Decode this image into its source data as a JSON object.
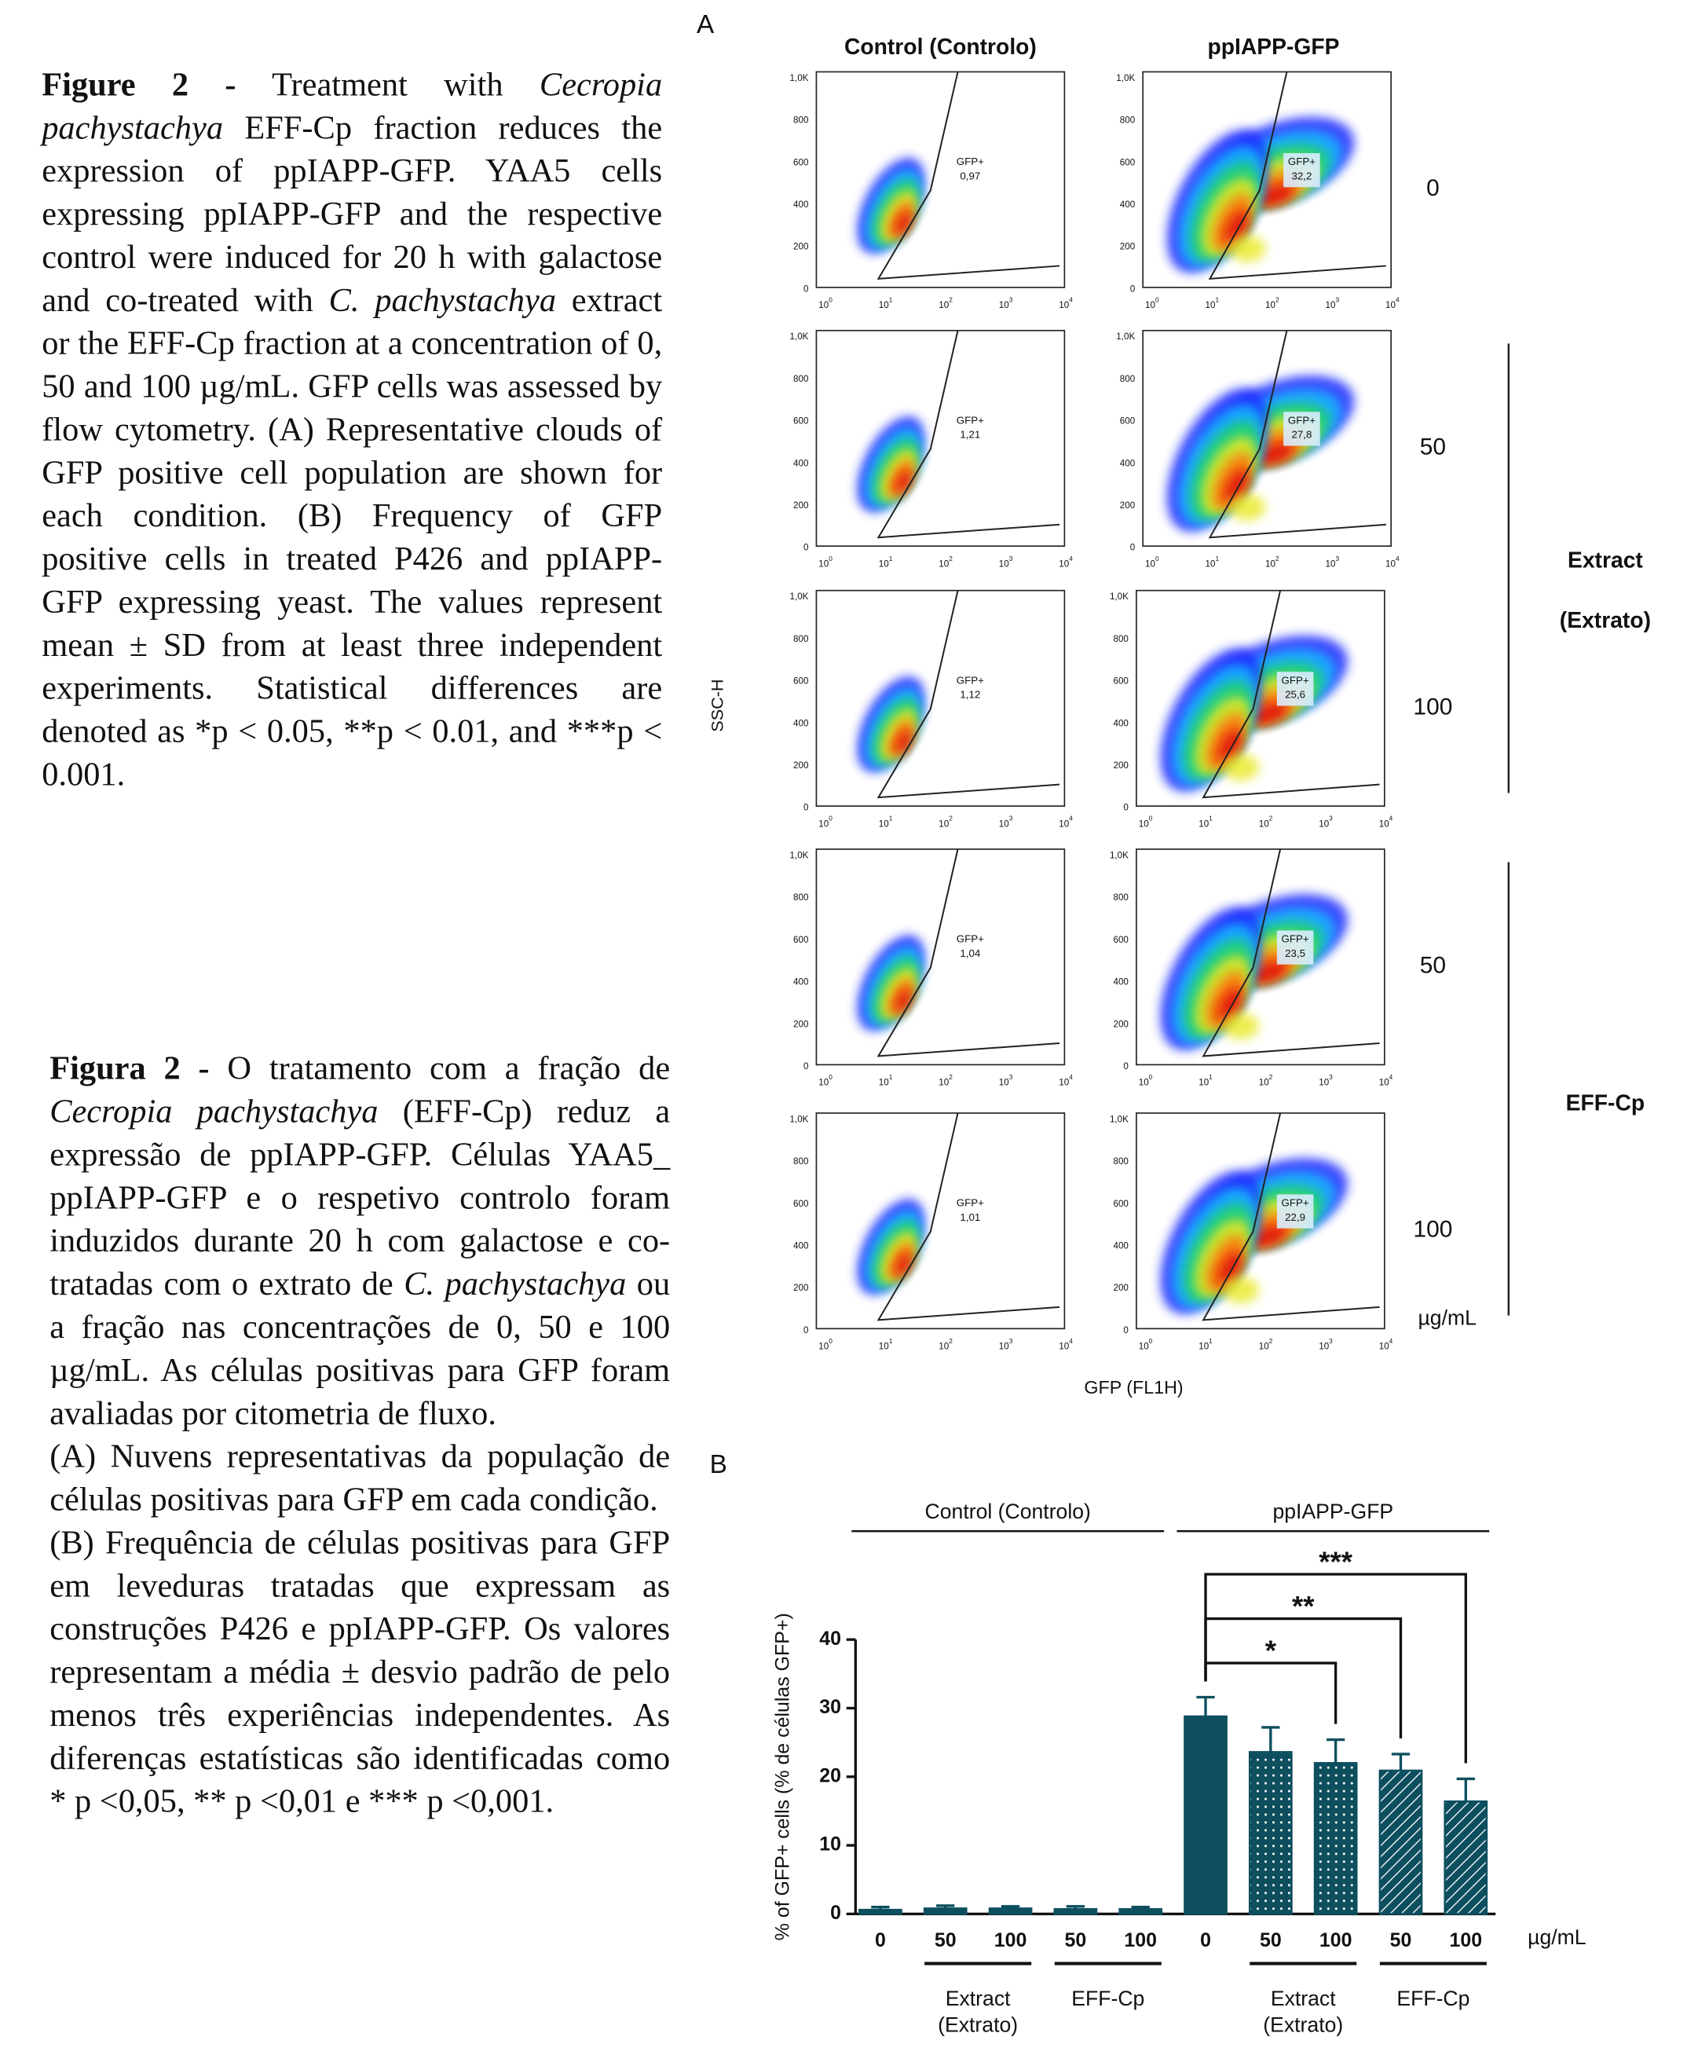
{
  "caption_en": {
    "paragraphs": [
      [
        {
          "text": "Figure 2 -",
          "style": "bold"
        },
        {
          "text": " Treatment with "
        },
        {
          "text": "Cecropia pachystachya",
          "style": "italic"
        },
        {
          "text": " EFF-Cp fraction reduces the expression of ppIAPP-GFP. YAA5 cells expressing ppIAPP-GFP and the respective control were induced for 20 h with galactose and co-treated with "
        },
        {
          "text": "C. pachystachya",
          "style": "italic"
        },
        {
          "text": " extract or the EFF-Cp fraction at a concentration of 0, 50 and 100 µg/mL. GFP cells was assessed by flow cytometry. (A) Representative clouds of GFP positive cell population are shown for each condition. (B) Frequency of GFP positive cells in treated P426 and ppIAPP-GFP expressing yeast. The values represent mean ± SD from at least three independent experiments. Statistical differences are denoted as *p < 0.05, **p < 0.01, and ***p < 0.001."
        }
      ]
    ]
  },
  "caption_pt": {
    "paragraphs": [
      [
        {
          "text": "Figura 2 -",
          "style": "bold"
        },
        {
          "text": " O tratamento com a fração de "
        },
        {
          "text": "Cecropia pachystachya",
          "style": "italic"
        },
        {
          "text": " (EFF-Cp) reduz a expressão de ppIAPP-GFP. Células YAA5_ ppIAPP-GFP e o respetivo controlo foram induzidos durante 20 h com galactose e co-tratadas com o extrato de "
        },
        {
          "text": "C. pachystachya",
          "style": "italic"
        },
        {
          "text": " ou a fração nas concentrações de 0, 50 e 100 µg/mL. As células positivas para GFP foram avaliadas por citometria de fluxo."
        }
      ],
      [
        {
          "text": "(A) Nuvens representativas da população de células positivas para GFP em cada condição."
        }
      ],
      [
        {
          "text": "(B) Frequência de células positivas para GFP em leveduras tratadas que expressam as construções P426 e ppIAPP-GFP. Os valores representam a média ± desvio padrão de pelo menos três experiências independentes. As diferenças estatísticas são identificadas como * p <0,05, ** p <0,01 e *** p <0,001."
        }
      ]
    ]
  },
  "panel_a": {
    "label": "A",
    "columns": [
      "Control (Controlo)",
      "ppIAPP-GFP"
    ],
    "doses": [
      "0",
      "50",
      "100",
      "50",
      "100"
    ],
    "dose_unit": "µg/mL",
    "groups": [
      {
        "label": [
          "Extract",
          "(Extrato)"
        ],
        "rows": [
          1,
          2
        ]
      },
      {
        "label": [
          "EFF-Cp"
        ],
        "rows": [
          3,
          4
        ]
      }
    ],
    "y_axis_label": "SSC-H",
    "x_axis_label": "GFP (FL1H)",
    "yticks": [
      "1,0K",
      "800",
      "600",
      "400",
      "200",
      "0"
    ],
    "xtick_base": "10",
    "xtick_exponents": [
      "0",
      "1",
      "2",
      "3",
      "4"
    ],
    "gate_label": "GFP+",
    "gate_values": [
      [
        "0,97",
        "32,2"
      ],
      [
        "1,21",
        "27,8"
      ],
      [
        "1,12",
        "25,6"
      ],
      [
        "1,04",
        "23,5"
      ],
      [
        "1,01",
        "22,9"
      ]
    ]
  },
  "chart_data": {
    "type": "bar",
    "panel_label": "B",
    "ylabel": "% of GFP+ cells (% de células GFP+)",
    "categories": [
      "0",
      "50",
      "100",
      "50",
      "100",
      "0",
      "50",
      "100",
      "50",
      "100"
    ],
    "values": [
      0.6,
      0.8,
      0.8,
      0.7,
      0.7,
      28.8,
      23.6,
      22.0,
      20.9,
      16.4
    ],
    "errors": [
      0.4,
      0.4,
      0.3,
      0.4,
      0.3,
      2.8,
      3.6,
      3.4,
      2.4,
      3.3
    ],
    "patterns": [
      "solid",
      "solid",
      "solid",
      "solid",
      "solid",
      "solid",
      "dotted",
      "dotted",
      "hatched",
      "hatched"
    ],
    "color": "#0d4f5f",
    "ylim": [
      0,
      40
    ],
    "yticks": [
      0,
      10,
      20,
      30,
      40
    ],
    "unit_label": "µg/mL",
    "top_groups": [
      {
        "label": "Control (Controlo)",
        "from": 0,
        "to": 4
      },
      {
        "label": "ppIAPP-GFP",
        "from": 5,
        "to": 9
      }
    ],
    "bottom_groups": [
      {
        "label": [
          "Extract",
          "(Extrato)"
        ],
        "from": 1,
        "to": 2
      },
      {
        "label": [
          "EFF-Cp"
        ],
        "from": 3,
        "to": 4
      },
      {
        "label": [
          "Extract",
          "(Extrato)"
        ],
        "from": 6,
        "to": 7
      },
      {
        "label": [
          "EFF-Cp"
        ],
        "from": 8,
        "to": 9
      }
    ],
    "significance": [
      {
        "label": "*",
        "from": 5,
        "to": 7
      },
      {
        "label": "**",
        "from": 5,
        "to": 8
      },
      {
        "label": "***",
        "from": 5,
        "to": 9
      }
    ]
  }
}
